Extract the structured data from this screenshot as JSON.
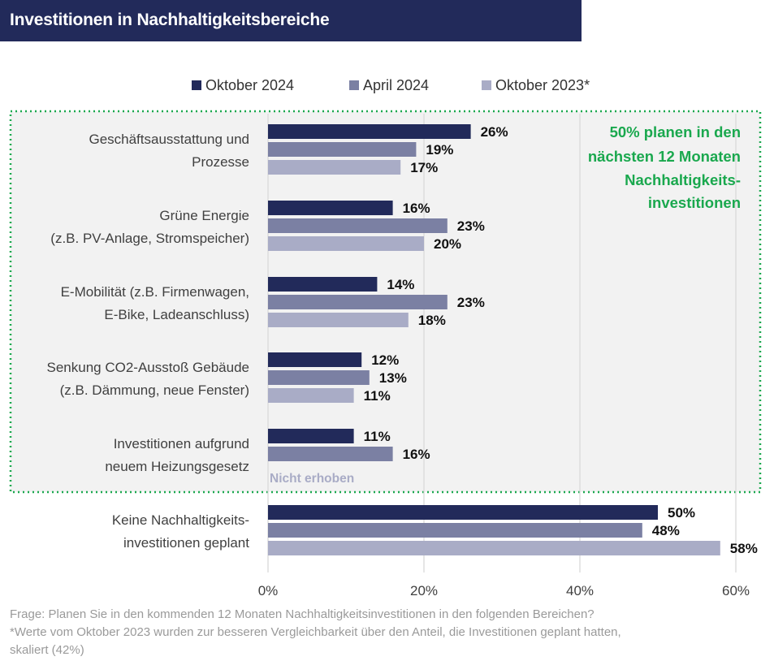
{
  "title": "Investitionen in Nachhaltigkeitsbereiche",
  "callout": [
    "50% planen in den",
    "nächsten 12 Monaten",
    "Nachhaltigkeits-",
    "investitionen"
  ],
  "not_collected_note": "Nicht erhoben",
  "footnote_lines": [
    "Frage: Planen Sie in den kommenden 12 Monaten Nachhaltigkeitsinvestitionen in den folgenden Bereichen?",
    "*Werte vom Oktober 2023 wurden zur besseren Vergleichbarkeit über den Anteil, die Investitionen geplant hatten,",
    "skaliert (42%)"
  ],
  "colors": {
    "oktober_2024": "#222a5a",
    "april_2024": "#7b80a3",
    "oktober_2023": "#a9acc6",
    "highlight_bg": "#f2f2f2",
    "highlight_border": "#1aa84e"
  },
  "chart_data": {
    "type": "bar",
    "orientation": "horizontal",
    "categories": [
      [
        "Geschäftsausstattung und",
        "Prozesse"
      ],
      [
        "Grüne Energie",
        "(z.B. PV-Anlage, Stromspeicher)"
      ],
      [
        "E-Mobilität (z.B. Firmenwagen,",
        "E-Bike, Ladeanschluss)"
      ],
      [
        "Senkung CO2-Ausstoß Gebäude",
        "(z.B. Dämmung, neue Fenster)"
      ],
      [
        "Investitionen aufgrund",
        "neuem Heizungsgesetz"
      ],
      [
        "Keine Nachhaltigkeits-",
        "investitionen geplant"
      ]
    ],
    "series": [
      {
        "name": "Oktober 2024",
        "values": [
          26,
          16,
          14,
          12,
          11,
          50
        ]
      },
      {
        "name": "April 2024",
        "values": [
          19,
          23,
          23,
          13,
          16,
          48
        ]
      },
      {
        "name": "Oktober 2023*",
        "values": [
          17,
          20,
          18,
          11,
          null,
          58
        ]
      }
    ],
    "value_suffix": "%",
    "xlim": [
      0,
      60
    ],
    "xticks": [
      0,
      20,
      40,
      60
    ],
    "xtick_labels": [
      "0%",
      "20%",
      "40%",
      "60%"
    ],
    "grid": "vertical",
    "legend": "top-center"
  }
}
